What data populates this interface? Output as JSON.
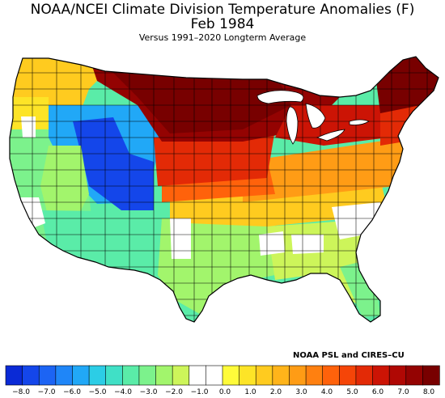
{
  "header": {
    "title": "NOAA/NCEI Climate Division Temperature Anomalies (F)",
    "subtitle": "Feb 1984",
    "caption": "Versus 1991–2020 Longterm Average"
  },
  "credit": "NOAA PSL and CIRES–CU",
  "legend": {
    "units": "F",
    "tick_labels": [
      "−8.0",
      "−7.0",
      "−6.0",
      "−5.0",
      "−4.0",
      "−3.0",
      "−2.0",
      "−1.0",
      "0.0",
      "1.0",
      "2.0",
      "3.0",
      "4.0",
      "5.0",
      "6.0",
      "7.0",
      "8.0"
    ],
    "colors": [
      "#0a2ad6",
      "#1446ea",
      "#1c64f4",
      "#1f86f8",
      "#21a8f7",
      "#2ccde6",
      "#40e0c6",
      "#5aeca8",
      "#7cf28c",
      "#a2f56c",
      "#cdf55a",
      "#ffffff",
      "#ffffff",
      "#fffb3a",
      "#fde427",
      "#ffcb1f",
      "#ffb41a",
      "#ff9c15",
      "#ff8010",
      "#ff620b",
      "#f54508",
      "#e32a06",
      "#cc1405",
      "#b00804",
      "#940302",
      "#780000"
    ]
  },
  "map": {
    "regions": [
      {
        "name": "Pacific Northwest",
        "anomaly": 1.5,
        "color": "#ffcb1f"
      },
      {
        "name": "Northern Rockies",
        "anomaly": -4.0,
        "color": "#21a8f7"
      },
      {
        "name": "Wyoming / Colorado Rockies",
        "anomaly": -7.0,
        "color": "#1446ea"
      },
      {
        "name": "Great Basin",
        "anomaly": -2.5,
        "color": "#5aeca8"
      },
      {
        "name": "California",
        "anomaly": -1.5,
        "color": "#7cf28c"
      },
      {
        "name": "Southwest",
        "anomaly": -2.0,
        "color": "#5aeca8"
      },
      {
        "name": "Southern Plains / Texas",
        "anomaly": -1.0,
        "color": "#a2f56c"
      },
      {
        "name": "Northern Plains",
        "anomaly": 6.5,
        "color": "#b00804"
      },
      {
        "name": "Upper Midwest",
        "anomaly": 8.0,
        "color": "#780000"
      },
      {
        "name": "Central Plains",
        "anomaly": 5.0,
        "color": "#f54508"
      },
      {
        "name": "Ohio Valley",
        "anomaly": 4.0,
        "color": "#ff8010"
      },
      {
        "name": "Southeast",
        "anomaly": -0.8,
        "color": "#cdf55a"
      },
      {
        "name": "Florida",
        "anomaly": -1.5,
        "color": "#a2f56c"
      },
      {
        "name": "Mid-Atlantic",
        "anomaly": 3.0,
        "color": "#ffb41a"
      },
      {
        "name": "Northeast / New England",
        "anomaly": 7.5,
        "color": "#940302"
      }
    ]
  }
}
